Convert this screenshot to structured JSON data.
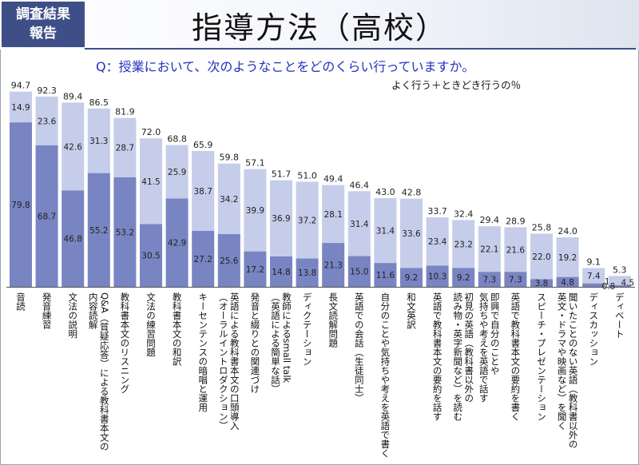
{
  "header": {
    "badge_line1": "調査結果",
    "badge_line2": "報告",
    "title": "指導方法（高校）"
  },
  "question": "Q：授業において、次のようなことをどのくらい行っていますか。",
  "note": "よく行う＋ときどき行うの％",
  "colors": {
    "often": "#7885c2",
    "sometimes": "#c5cdea",
    "badge": "#3d4f86",
    "question": "#2233bb"
  },
  "chart_data": {
    "type": "bar",
    "stacked": true,
    "ylim": [
      0,
      100
    ],
    "series": [
      {
        "name": "よく行う",
        "values": [
          79.8,
          68.7,
          46.8,
          55.2,
          53.2,
          30.5,
          42.9,
          27.2,
          25.6,
          17.2,
          14.8,
          13.8,
          21.3,
          15.0,
          11.6,
          9.2,
          10.3,
          9.2,
          7.3,
          7.3,
          3.8,
          4.8,
          1.7,
          0.8
        ]
      },
      {
        "name": "ときどき行う",
        "values": [
          14.9,
          23.6,
          42.6,
          31.3,
          28.7,
          41.5,
          25.9,
          38.7,
          34.2,
          39.9,
          36.9,
          37.2,
          28.1,
          31.4,
          31.4,
          33.6,
          23.4,
          23.2,
          22.1,
          21.6,
          22.0,
          19.2,
          7.4,
          4.5
        ]
      }
    ],
    "totals": [
      94.7,
      92.3,
      89.4,
      86.5,
      81.9,
      72.0,
      68.8,
      65.9,
      59.8,
      57.1,
      51.7,
      51.0,
      49.4,
      46.4,
      43.0,
      42.8,
      33.7,
      32.4,
      29.4,
      28.9,
      25.8,
      24.0,
      9.1,
      5.3
    ],
    "categories": [
      [
        "音読"
      ],
      [
        "発音練習"
      ],
      [
        "文法の説明"
      ],
      [
        "Q&A（質疑応答）による教科書本文の",
        "内容読解"
      ],
      [
        "教科書本文のリスニング"
      ],
      [
        "文法の練習問題"
      ],
      [
        "教科書本文の和訳"
      ],
      [
        "キーセンテンスの暗唱と運用"
      ],
      [
        "英語による教科書本文の口頭導入",
        "（オーラルイントロダクション）"
      ],
      [
        "発音と綴りとの関連づけ"
      ],
      [
        "教師によるsmall talk",
        "（英語による簡単な話）"
      ],
      [
        "ディクテーション"
      ],
      [
        "長文読解問題"
      ],
      [
        "英語での会話（生徒同士）"
      ],
      [
        "自分のことや気持ちや考えを英語で書く"
      ],
      [
        "和文英訳"
      ],
      [
        "英語で教科書本文の要約を話す"
      ],
      [
        "初見の英語（教科書以外の",
        "読み物・英字新聞など）を読む"
      ],
      [
        "即興で自分のことや",
        "気持ちや考えを英語で話す"
      ],
      [
        "英語で教科書本文の要約を書く"
      ],
      [
        "スピーチ・プレゼンテーション"
      ],
      [
        "聞いたことのない英語（教科書以外の",
        "英文・ドラマや映画など）を聞く"
      ],
      [
        "ディスカッション"
      ],
      [
        "ディベート"
      ]
    ]
  }
}
